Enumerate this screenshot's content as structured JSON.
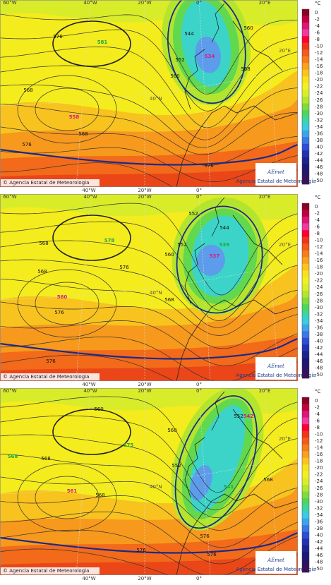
{
  "colorbar": {
    "unit": "°C",
    "ticks": [
      "0",
      "-2",
      "-4",
      "-6",
      "-8",
      "-10",
      "-12",
      "-14",
      "-16",
      "-18",
      "-20",
      "-22",
      "-24",
      "-26",
      "-28",
      "-30",
      "-32",
      "-34",
      "-36",
      "-38",
      "-40",
      "-42",
      "-44",
      "-46",
      "-48",
      "-50"
    ]
  },
  "graticule": {
    "top": [
      "60°W",
      "40°W",
      "20°W",
      "0°",
      "20°E"
    ],
    "bottom": [
      "40°W",
      "20°W",
      "0°"
    ],
    "lat": "40°N",
    "right": "20°E"
  },
  "credit": "© Agencia Estatal de Meteorologia",
  "logo": {
    "name": "AEmet",
    "subtitle": "Agencia Estatal de Meteorología"
  },
  "panels": [
    {
      "centers": [
        "581",
        "558",
        "534"
      ],
      "contour_labels": [
        "576",
        "568",
        "568",
        "576",
        "560",
        "552",
        "544",
        "560",
        "568",
        "576"
      ]
    },
    {
      "centers": [
        "578",
        "560",
        "539",
        "537"
      ],
      "contour_labels": [
        "568",
        "576",
        "560",
        "552",
        "568",
        "576",
        "568",
        "576",
        "552",
        "544"
      ]
    },
    {
      "centers": [
        "568",
        "575",
        "561",
        "542",
        "541"
      ],
      "contour_labels": [
        "568",
        "560",
        "568",
        "576",
        "560",
        "552",
        "576",
        "568",
        "576",
        "552"
      ]
    }
  ]
}
